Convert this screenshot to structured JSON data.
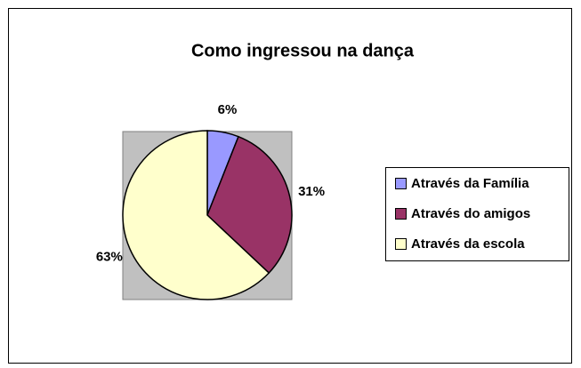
{
  "chart_data": {
    "type": "pie",
    "title": "Como ingressou na dança",
    "categories": [
      "Através da Família",
      "Através do amigos",
      "Através da escola"
    ],
    "values": [
      6,
      31,
      63
    ],
    "value_labels": [
      "6%",
      "31%",
      "63%"
    ],
    "colors": [
      "#9999ff",
      "#993366",
      "#ffffcc"
    ],
    "legend": "right"
  }
}
